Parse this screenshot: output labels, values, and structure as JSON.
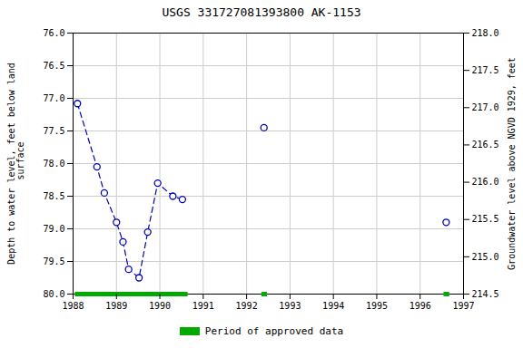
{
  "chart_data": {
    "type": "line",
    "title": "USGS 331727081393800 AK-1153",
    "ylabel": "Depth to water level, feet below land\n surface",
    "y2label": "Groundwater level above NGVD 1929, feet",
    "xlim": [
      1988.0,
      1997.0
    ],
    "xticks": [
      1988,
      1989,
      1990,
      1991,
      1992,
      1993,
      1994,
      1995,
      1996,
      1997
    ],
    "ylim": [
      80.0,
      76.0
    ],
    "yticks": [
      {
        "value": 76.0,
        "label": "76.0"
      },
      76.5,
      {
        "value": 77.0,
        "label": "77.0"
      },
      77.5,
      {
        "value": 78.0,
        "label": "78.0"
      },
      78.5,
      {
        "value": 79.0,
        "label": "79.0"
      },
      79.5,
      {
        "value": 80.0,
        "label": "80.0"
      }
    ],
    "y2lim": [
      214.5,
      218.0
    ],
    "y2ticks": [
      {
        "value": 218.0,
        "label": "218.0"
      },
      217.5,
      {
        "value": 217.0,
        "label": "217.0"
      },
      216.5,
      {
        "value": 216.0,
        "label": "216.0"
      },
      215.5,
      {
        "value": 215.0,
        "label": "215.0"
      },
      214.5
    ],
    "grid": true,
    "series": [
      {
        "type": "line",
        "x": [
          1988.1,
          1988.55,
          1988.72,
          1989.0,
          1989.15,
          1989.28,
          1989.52,
          1989.72,
          1989.95,
          1990.3,
          1990.52
        ],
        "values": [
          77.08,
          78.05,
          78.45,
          78.9,
          79.2,
          79.62,
          79.75,
          79.05,
          78.3,
          78.5,
          78.55
        ],
        "color": "#0000bb",
        "marker": "circle",
        "line_style": "dashed"
      },
      {
        "type": "scatter",
        "x": [
          1992.4,
          1996.6
        ],
        "values": [
          77.45,
          78.9
        ],
        "color": "#0000bb",
        "marker": "circle"
      }
    ],
    "approved_periods": {
      "name": "Period of approved data",
      "color": "#00aa00",
      "y": 80.0,
      "periods": [
        {
          "start": 1988.05,
          "end": 1990.65
        },
        {
          "start": 1992.35,
          "end": 1992.48
        },
        {
          "start": 1996.55,
          "end": 1996.68
        }
      ]
    },
    "legend": "bottom"
  }
}
